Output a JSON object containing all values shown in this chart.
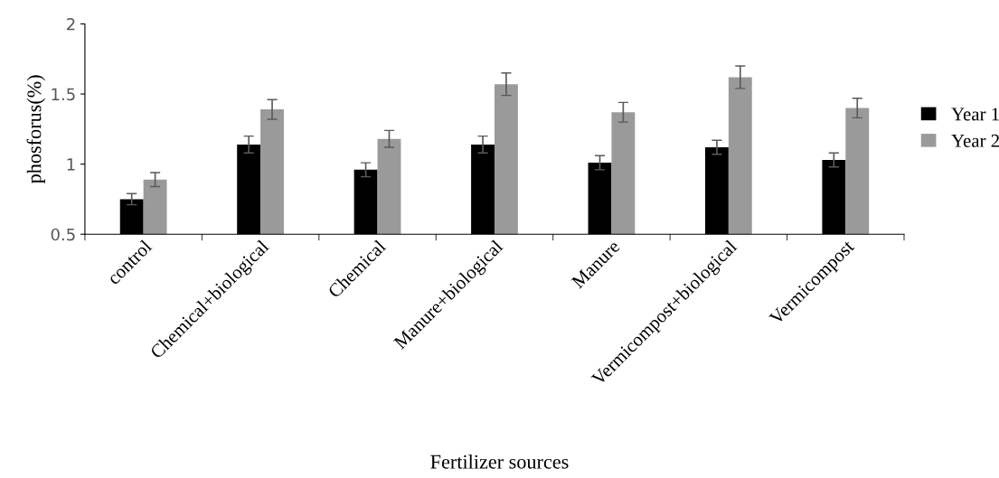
{
  "chart_data": {
    "type": "bar",
    "xlabel": "Fertilizer sources",
    "ylabel": "phosforus(%)",
    "categories": [
      "control",
      "Chemical+biological",
      "Chemical",
      "Manure+biological",
      "Manure",
      "Vermicompost+biological",
      "Vermicompost"
    ],
    "series": [
      {
        "name": "Year 1",
        "color": "#000000",
        "values": [
          0.75,
          1.14,
          0.96,
          1.14,
          1.01,
          1.12,
          1.03
        ],
        "errors": [
          0.04,
          0.06,
          0.05,
          0.06,
          0.05,
          0.05,
          0.05
        ]
      },
      {
        "name": "Year 2",
        "color": "#9a9a9a",
        "values": [
          0.89,
          1.39,
          1.18,
          1.57,
          1.37,
          1.62,
          1.4
        ],
        "errors": [
          0.05,
          0.07,
          0.06,
          0.08,
          0.07,
          0.08,
          0.07
        ]
      }
    ],
    "ylim": [
      0.5,
      2
    ],
    "yticks": [
      0.5,
      1,
      1.5,
      2
    ],
    "grid": false,
    "legend": "right"
  }
}
